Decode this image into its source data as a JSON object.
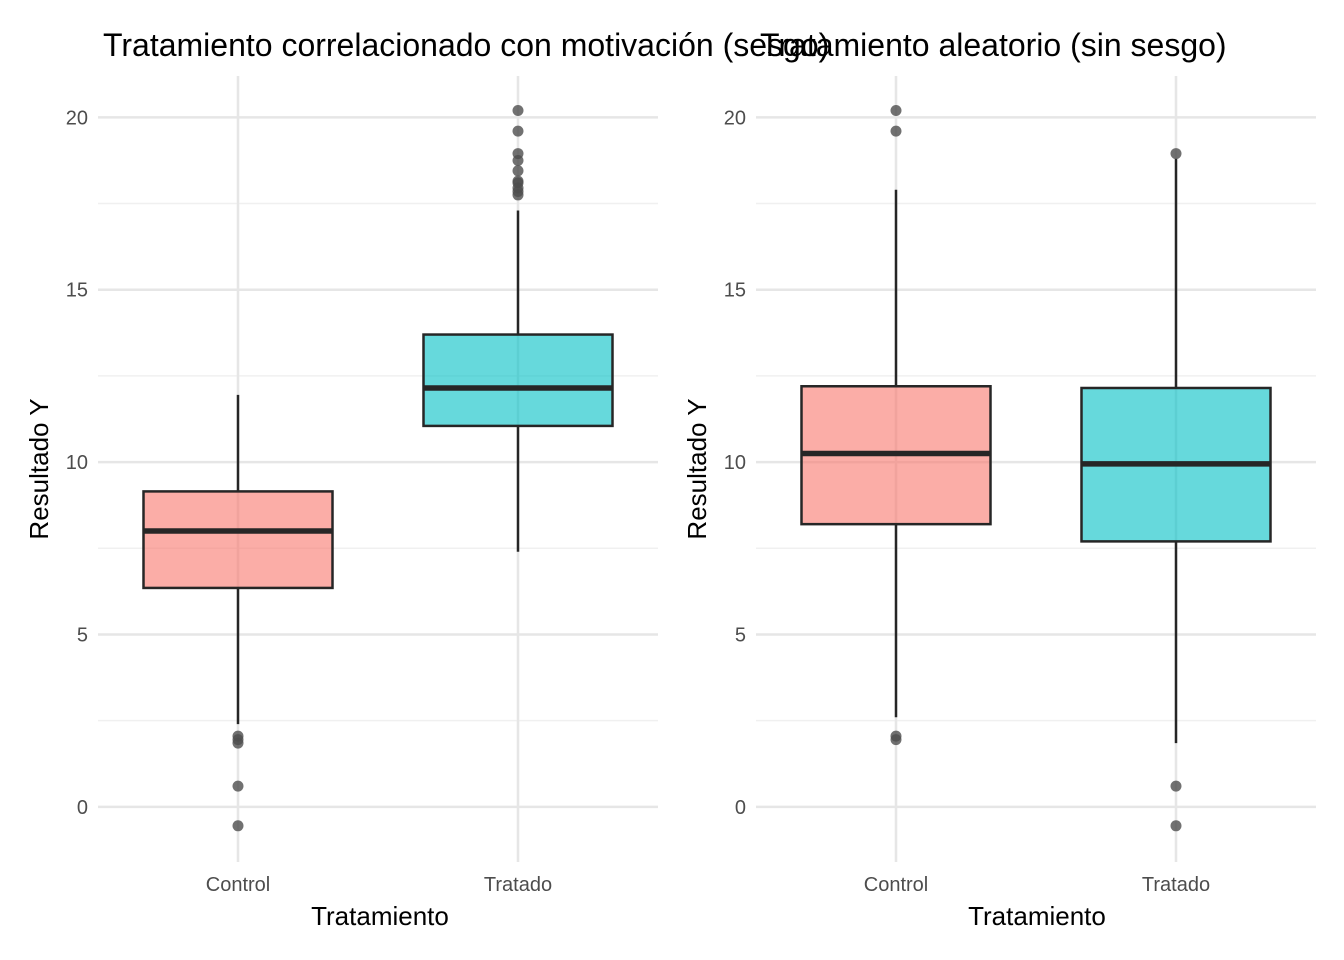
{
  "colors": {
    "control": "#F8766D",
    "tratado": "#00BFC4",
    "box_outline": "#262626",
    "outlier": "#4d4d4d",
    "grid_major": "#e6e6e6",
    "grid_minor": "#f0f0f0"
  },
  "chart_data": [
    {
      "type": "box",
      "title": "Tratamiento correlacionado con motivación (sesgo)",
      "xlabel": "Tratamiento",
      "ylabel": "Resultado Y",
      "ylim": [
        -1.6,
        21.2
      ],
      "yticks": [
        0,
        5,
        10,
        15,
        20
      ],
      "grid": true,
      "legend": "none",
      "categories": [
        "Control",
        "Tratado"
      ],
      "boxes": [
        {
          "category": "Control",
          "color_key": "control",
          "whisker_low": 2.4,
          "q1": 6.35,
          "median": 8.0,
          "q3": 9.15,
          "whisker_high": 11.95,
          "outliers": [
            2.05,
            1.95,
            1.85,
            0.6,
            -0.55
          ]
        },
        {
          "category": "Tratado",
          "color_key": "tratado",
          "whisker_low": 7.4,
          "q1": 11.05,
          "median": 12.15,
          "q3": 13.7,
          "whisker_high": 17.3,
          "outliers": [
            20.2,
            19.6,
            18.95,
            18.75,
            18.45,
            18.15,
            18.1,
            17.95,
            17.85,
            17.75
          ]
        }
      ]
    },
    {
      "type": "box",
      "title": "Tratamiento aleatorio (sin sesgo)",
      "xlabel": "Tratamiento",
      "ylabel": "Resultado Y",
      "ylim": [
        -1.6,
        21.2
      ],
      "yticks": [
        0,
        5,
        10,
        15,
        20
      ],
      "grid": true,
      "legend": "none",
      "categories": [
        "Control",
        "Tratado"
      ],
      "boxes": [
        {
          "category": "Control",
          "color_key": "control",
          "whisker_low": 2.6,
          "q1": 8.2,
          "median": 10.25,
          "q3": 12.2,
          "whisker_high": 17.9,
          "outliers": [
            20.2,
            19.6,
            2.05,
            1.95
          ]
        },
        {
          "category": "Tratado",
          "color_key": "tratado",
          "whisker_low": 1.85,
          "q1": 7.7,
          "median": 9.95,
          "q3": 12.15,
          "whisker_high": 18.8,
          "outliers": [
            18.95,
            0.6,
            -0.55
          ]
        }
      ]
    }
  ]
}
